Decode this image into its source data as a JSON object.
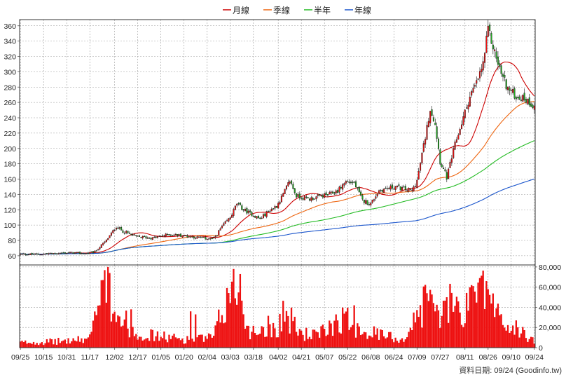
{
  "chart_data": {
    "type": "candlestick-with-volume",
    "legend": [
      {
        "label": "月線",
        "color": "#cc0000"
      },
      {
        "label": "季線",
        "color": "#ee6611"
      },
      {
        "label": "半年",
        "color": "#22bb22"
      },
      {
        "label": "年線",
        "color": "#1a55cc"
      }
    ],
    "price_axis": {
      "ticks": [
        60,
        80,
        100,
        120,
        140,
        160,
        180,
        200,
        220,
        240,
        260,
        280,
        300,
        320,
        340,
        360
      ],
      "range": [
        48,
        368
      ]
    },
    "volume_axis": {
      "ticks": [
        0,
        20000,
        40000,
        60000,
        80000
      ],
      "tick_labels": [
        "0",
        "20,000",
        "40,000",
        "60,000",
        "80,000"
      ],
      "range": [
        0,
        82000
      ]
    },
    "x_labels": [
      "09/25",
      "10/15",
      "10/31",
      "11/17",
      "12/02",
      "12/17",
      "01/05",
      "01/20",
      "02/04",
      "03/03",
      "03/18",
      "04/02",
      "04/21",
      "05/07",
      "05/22",
      "06/08",
      "06/24",
      "07/09",
      "07/27",
      "08/11",
      "08/26",
      "09/10",
      "09/24"
    ],
    "up_color": "#ee1111",
    "down_color": "#22aa22",
    "close_keypoints": [
      [
        0,
        62
      ],
      [
        10,
        62
      ],
      [
        20,
        63
      ],
      [
        30,
        64
      ],
      [
        40,
        63
      ],
      [
        45,
        65
      ],
      [
        52,
        80
      ],
      [
        58,
        98
      ],
      [
        62,
        92
      ],
      [
        70,
        85
      ],
      [
        80,
        83
      ],
      [
        90,
        88
      ],
      [
        100,
        86
      ],
      [
        110,
        83
      ],
      [
        117,
        82
      ],
      [
        122,
        98
      ],
      [
        127,
        110
      ],
      [
        131,
        128
      ],
      [
        135,
        120
      ],
      [
        140,
        114
      ],
      [
        145,
        108
      ],
      [
        150,
        118
      ],
      [
        155,
        125
      ],
      [
        159,
        140
      ],
      [
        163,
        158
      ],
      [
        167,
        138
      ],
      [
        175,
        134
      ],
      [
        182,
        138
      ],
      [
        187,
        140
      ],
      [
        192,
        145
      ],
      [
        197,
        157
      ],
      [
        202,
        155
      ],
      [
        207,
        132
      ],
      [
        212,
        128
      ],
      [
        217,
        145
      ],
      [
        222,
        148
      ],
      [
        227,
        150
      ],
      [
        232,
        147
      ],
      [
        237,
        145
      ],
      [
        240,
        158
      ],
      [
        245,
        215
      ],
      [
        248,
        252
      ],
      [
        251,
        232
      ],
      [
        254,
        183
      ],
      [
        258,
        162
      ],
      [
        263,
        205
      ],
      [
        268,
        240
      ],
      [
        272,
        268
      ],
      [
        276,
        285
      ],
      [
        280,
        310
      ],
      [
        283,
        355
      ],
      [
        285,
        340
      ],
      [
        288,
        318
      ],
      [
        291,
        298
      ],
      [
        295,
        278
      ],
      [
        300,
        268
      ],
      [
        305,
        265
      ],
      [
        310,
        257
      ]
    ],
    "volume_keypoints": [
      [
        0,
        5000
      ],
      [
        20,
        6000
      ],
      [
        40,
        8000
      ],
      [
        45,
        25000
      ],
      [
        52,
        62000
      ],
      [
        55,
        45000
      ],
      [
        60,
        30000
      ],
      [
        70,
        15000
      ],
      [
        80,
        12000
      ],
      [
        90,
        10000
      ],
      [
        100,
        8000
      ],
      [
        110,
        9000
      ],
      [
        117,
        10000
      ],
      [
        122,
        35000
      ],
      [
        127,
        52000
      ],
      [
        131,
        60000
      ],
      [
        135,
        30000
      ],
      [
        140,
        15000
      ],
      [
        150,
        22000
      ],
      [
        155,
        18000
      ],
      [
        159,
        35000
      ],
      [
        163,
        28000
      ],
      [
        170,
        14000
      ],
      [
        180,
        12000
      ],
      [
        187,
        20000
      ],
      [
        192,
        30000
      ],
      [
        197,
        28000
      ],
      [
        205,
        20000
      ],
      [
        212,
        15000
      ],
      [
        220,
        12000
      ],
      [
        232,
        8000
      ],
      [
        240,
        30000
      ],
      [
        245,
        48000
      ],
      [
        250,
        38000
      ],
      [
        255,
        32000
      ],
      [
        262,
        45000
      ],
      [
        268,
        35000
      ],
      [
        274,
        50000
      ],
      [
        279,
        55000
      ],
      [
        283,
        60000
      ],
      [
        286,
        40000
      ],
      [
        290,
        30000
      ],
      [
        295,
        20000
      ],
      [
        300,
        18000
      ],
      [
        310,
        8000
      ]
    ],
    "volume_spikes": [
      [
        53,
        80000
      ],
      [
        54,
        74000
      ],
      [
        67,
        38000
      ],
      [
        103,
        36000
      ],
      [
        106,
        33000
      ],
      [
        129,
        78000
      ],
      [
        133,
        73000
      ],
      [
        202,
        42000
      ],
      [
        246,
        54000
      ],
      [
        258,
        50000
      ],
      [
        273,
        62000
      ],
      [
        278,
        69000
      ],
      [
        282,
        66000
      ],
      [
        283,
        58000
      ]
    ],
    "source_text": "資料日期: 09/24  (Goodinfo.tw)"
  }
}
